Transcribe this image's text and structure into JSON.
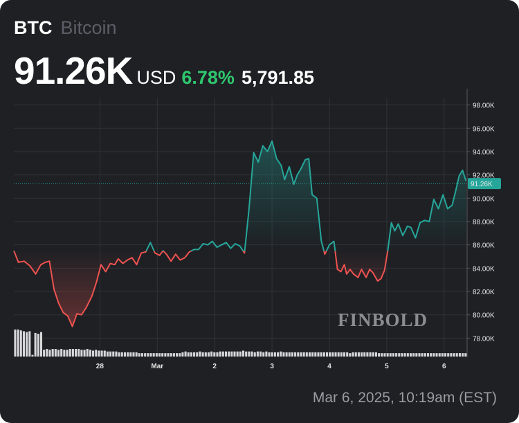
{
  "header": {
    "symbol": "BTC",
    "name": "Bitcoin",
    "price": "91.26K",
    "currency": "USD",
    "change_pct": "6.78%",
    "change_abs": "5,791.85"
  },
  "footer": {
    "timestamp": "Mar 6, 2025, 10:19am (EST)"
  },
  "watermark": "FINBOLD",
  "colors": {
    "background": "#1e2024",
    "up": "#26a69a",
    "down": "#ef5350",
    "change_text": "#2fc76e",
    "last_price_badge": "#26a69a"
  },
  "chart_data": {
    "type": "line",
    "baseline": 85.47,
    "last_price": 91.26,
    "last_price_label": "91.26K",
    "ylim": [
      76.6,
      99.4
    ],
    "yticks": [
      78,
      80,
      82,
      84,
      86,
      88,
      90,
      92,
      94,
      96,
      98
    ],
    "ytick_labels": [
      "78.00K",
      "80.00K",
      "82.00K",
      "84.00K",
      "86.00K",
      "88.00K",
      "90.00K",
      "92.00K",
      "94.00K",
      "96.00K",
      "98.00K"
    ],
    "xlim": [
      26.5,
      34.4
    ],
    "xticks": [
      28,
      29,
      30,
      31,
      32,
      33,
      34
    ],
    "xtick_labels": [
      "28",
      "Mar",
      "2",
      "3",
      "4",
      "5",
      "6"
    ],
    "grid": true,
    "series": [
      {
        "x": [
          26.5,
          26.58,
          26.68,
          26.78,
          26.88,
          26.97,
          27.05,
          27.12,
          27.2,
          27.28,
          27.36,
          27.44,
          27.52,
          27.6,
          27.68,
          27.76,
          27.86,
          27.94,
          28.02,
          28.1,
          28.18,
          28.26,
          28.32,
          28.4,
          28.48,
          28.56,
          28.64,
          28.72,
          28.8,
          28.88,
          28.96,
          29.04,
          29.1,
          29.16,
          29.24,
          29.32,
          29.4,
          29.48,
          29.56,
          29.64,
          29.72,
          29.8,
          29.88,
          29.96,
          30.04,
          30.12,
          30.2,
          30.28,
          30.36,
          30.44,
          30.52,
          30.6,
          30.68,
          30.76,
          30.84,
          30.92,
          31.0,
          31.08,
          31.16,
          31.22,
          31.3,
          31.38,
          31.44,
          31.5,
          31.58,
          31.64,
          31.7,
          31.78,
          31.86,
          31.92,
          32.0,
          32.08,
          32.14,
          32.2,
          32.26,
          32.3,
          32.36,
          32.42,
          32.5,
          32.56,
          32.64,
          32.7,
          32.76,
          32.84,
          32.9,
          32.96,
          33.02,
          33.08,
          33.14,
          33.2,
          33.28,
          33.36,
          33.42,
          33.5,
          33.58,
          33.66,
          33.74,
          33.82,
          33.9,
          33.98,
          34.06,
          34.14,
          34.2,
          34.26,
          34.32,
          34.38
        ],
        "y": [
          85.5,
          84.5,
          84.6,
          84.2,
          83.5,
          84.3,
          84.5,
          84.6,
          82.2,
          81.0,
          80.2,
          79.9,
          79.0,
          80.1,
          80.0,
          80.6,
          81.6,
          82.8,
          84.3,
          83.7,
          84.4,
          84.3,
          84.8,
          84.4,
          84.7,
          84.9,
          84.3,
          85.3,
          85.4,
          86.2,
          85.3,
          85.1,
          85.5,
          85.2,
          84.6,
          85.2,
          84.7,
          84.9,
          85.4,
          85.6,
          85.6,
          86.1,
          86.0,
          86.3,
          85.8,
          86.0,
          86.2,
          85.7,
          86.1,
          85.9,
          85.3,
          89.1,
          93.9,
          93.1,
          94.5,
          94.0,
          94.9,
          93.4,
          92.8,
          91.6,
          92.7,
          91.2,
          92.0,
          92.5,
          93.3,
          93.4,
          90.3,
          90.0,
          86.3,
          85.2,
          86.0,
          86.3,
          83.9,
          83.7,
          84.3,
          83.5,
          83.9,
          83.5,
          83.2,
          83.9,
          83.2,
          83.9,
          83.6,
          82.9,
          83.1,
          83.8,
          85.6,
          87.9,
          87.2,
          87.8,
          86.8,
          87.6,
          87.5,
          86.6,
          87.9,
          88.1,
          88.0,
          89.9,
          89.1,
          90.3,
          89.1,
          89.4,
          90.6,
          91.9,
          92.4,
          91.5
        ]
      }
    ],
    "volume": [
      0.32,
      0.32,
      0.31,
      0.3,
      0.29,
      0.3,
      0.02,
      0.28,
      0.27,
      0.29,
      0.08,
      0.09,
      0.08,
      0.09,
      0.09,
      0.08,
      0.09,
      0.08,
      0.08,
      0.09,
      0.09,
      0.09,
      0.09,
      0.08,
      0.08,
      0.09,
      0.08,
      0.07,
      0.08,
      0.07,
      0.07,
      0.07,
      0.06,
      0.06,
      0.06,
      0.06,
      0.05,
      0.05,
      0.05,
      0.05,
      0.05,
      0.05,
      0.05,
      0.04,
      0.04,
      0.04,
      0.04,
      0.04,
      0.04,
      0.04,
      0.04,
      0.04,
      0.04,
      0.04,
      0.04,
      0.04,
      0.04,
      0.04,
      0.05,
      0.06,
      0.05,
      0.05,
      0.05,
      0.05,
      0.06,
      0.05,
      0.05,
      0.05,
      0.06,
      0.05,
      0.05,
      0.06,
      0.06,
      0.06,
      0.06,
      0.06,
      0.06,
      0.06,
      0.06,
      0.07,
      0.06,
      0.06,
      0.06,
      0.05,
      0.06,
      0.06,
      0.05,
      0.06,
      0.05,
      0.05,
      0.05,
      0.05,
      0.06,
      0.05,
      0.05,
      0.05,
      0.05,
      0.05,
      0.05,
      0.05,
      0.05,
      0.05,
      0.05,
      0.05,
      0.05,
      0.05,
      0.05,
      0.05,
      0.05,
      0.05,
      0.05,
      0.05,
      0.05,
      0.05,
      0.05,
      0.05,
      0.04,
      0.05,
      0.05,
      0.05,
      0.05,
      0.05,
      0.05,
      0.05,
      0.05,
      0.05,
      0.04,
      0.04,
      0.04,
      0.04,
      0.04,
      0.04,
      0.04,
      0.04,
      0.04,
      0.04,
      0.04,
      0.04,
      0.04,
      0.04,
      0.04,
      0.04,
      0.04,
      0.04,
      0.04,
      0.04,
      0.04,
      0.04,
      0.04,
      0.04,
      0.04,
      0.04,
      0.04,
      0.04,
      0.04,
      0.04,
      0.04
    ]
  }
}
